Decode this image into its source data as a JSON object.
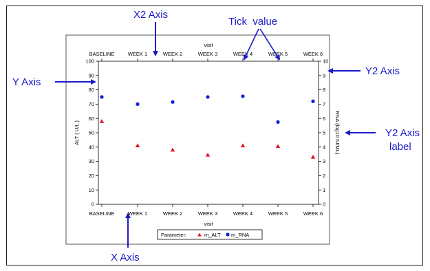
{
  "chart_data": {
    "type": "scatter",
    "categories": [
      "BASELINE",
      "WEEK 1",
      "WEEK 2",
      "WEEK 3",
      "WEEK 4",
      "WEEK 5",
      "WEEK 6"
    ],
    "x2_categories": [
      "BASELINE",
      "WEEK 1",
      "WEEK 2",
      "WEEK 3",
      "WEEK 4",
      "WEEK 5",
      "WEEK 6"
    ],
    "xlabel": "visit",
    "x2label": "visit",
    "ylabel": "ALT ( U/L )",
    "y2label": "RNA (log10 IU/ML)",
    "ylim": [
      0,
      100
    ],
    "y2lim": [
      0,
      10
    ],
    "yticks": [
      0,
      10,
      20,
      30,
      40,
      50,
      60,
      70,
      80,
      90,
      100
    ],
    "y2ticks": [
      0,
      1,
      2,
      3,
      4,
      5,
      6,
      7,
      8,
      9,
      10
    ],
    "grid": false,
    "series": [
      {
        "name": "m_ALT",
        "axis": "y",
        "marker": "triangle",
        "color": "#e8102a",
        "values": [
          58,
          41,
          38,
          34.5,
          41,
          40.5,
          33
        ]
      },
      {
        "name": "m_RNA",
        "axis": "y2",
        "marker": "circle",
        "color": "#1020d8",
        "values": [
          7.5,
          7.0,
          7.15,
          7.5,
          7.55,
          5.75,
          7.2
        ]
      }
    ],
    "legend": {
      "title": "Parameter:",
      "placement": "bottom-center"
    }
  },
  "annotations": [
    {
      "id": "x2-axis",
      "text": "X2 Axis"
    },
    {
      "id": "tick-value",
      "text": "Tick  value"
    },
    {
      "id": "y-axis",
      "text": "Y Axis"
    },
    {
      "id": "y2-axis",
      "text": "Y2 Axis"
    },
    {
      "id": "y2-axis-label",
      "text": "Y2 Axis\nlabel"
    },
    {
      "id": "x-axis",
      "text": "X Axis"
    }
  ],
  "colors": {
    "annotation": "#1a1acc",
    "alt": "#e8102a",
    "rna": "#1020d8"
  }
}
